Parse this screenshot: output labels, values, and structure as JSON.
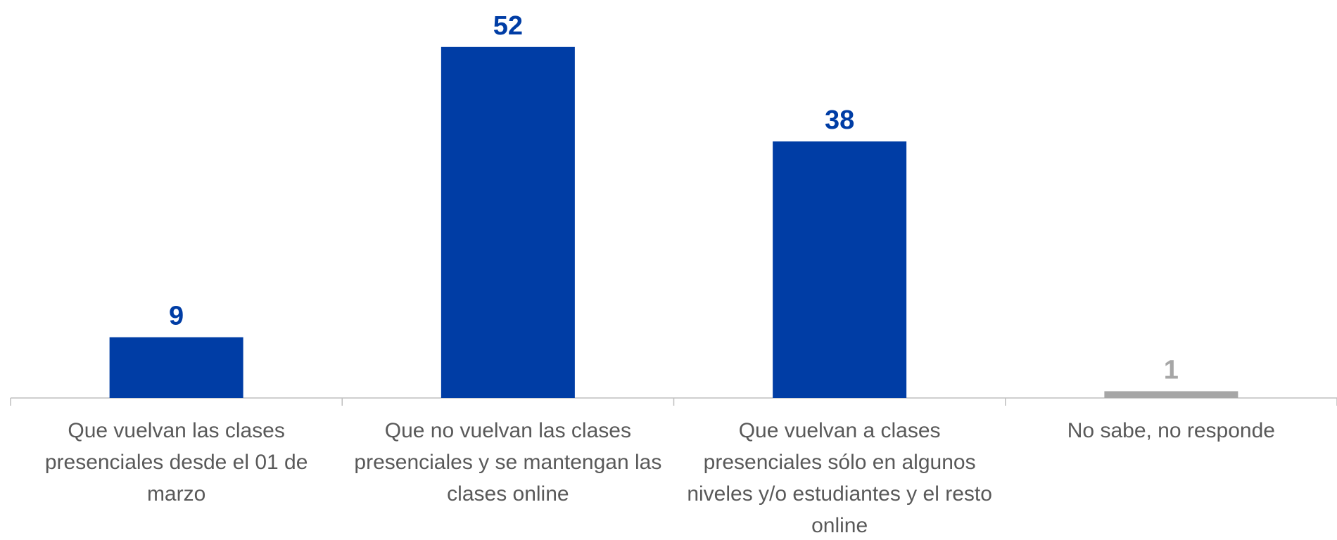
{
  "chart_data": {
    "type": "bar",
    "categories": [
      "Que vuelvan las clases presenciales desde el 01 de marzo",
      "Que no vuelvan las clases presenciales y se mantengan las clases online",
      "Que vuelvan a clases presenciales sólo en algunos niveles y/o estudiantes y el resto online",
      "No sabe, no responde"
    ],
    "values": [
      9,
      52,
      38,
      1
    ],
    "colors": [
      "#003da5",
      "#003da5",
      "#003da5",
      "#a6a6a6"
    ],
    "ylim": [
      0,
      55
    ]
  }
}
